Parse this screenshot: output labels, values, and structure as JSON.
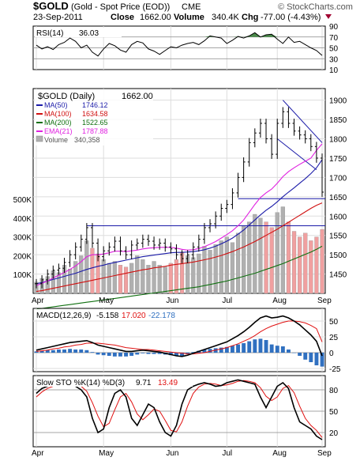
{
  "header": {
    "symbol": "$GOLD",
    "name": "(Gold - Spot Price (EOD))",
    "exchange": "CME",
    "copyright": "© StockCharts.com",
    "date": "23-Sep-2011",
    "close_label": "Close",
    "close_value": "1662.00",
    "volume_label": "Volume",
    "volume_value": "340.4K",
    "chg_label": "Chg",
    "chg_value": "-77.00 (-4.43%)"
  },
  "colors": {
    "price": "#000000",
    "ma50": "#1a1aa8",
    "ma100": "#d01010",
    "ma200": "#107010",
    "ema21": "#e020e0",
    "volume_up": "#b0b0b0",
    "volume_down": "#f0a0a0",
    "rsi_fill": "#4a8a4a",
    "macd_hist": "#3070c0",
    "signal": "#e01010",
    "grid": "#dddddd"
  },
  "chart_data": [
    {
      "type": "line",
      "panel": "RSI",
      "label": "RSI(14)",
      "value": "36.03",
      "y_ticks": [
        "90",
        "70",
        "50",
        "30",
        "10"
      ],
      "ylim": [
        10,
        90
      ],
      "levels": [
        70,
        50,
        30
      ],
      "values": [
        55,
        48,
        52,
        47,
        56,
        60,
        68,
        62,
        50,
        55,
        42,
        35,
        48,
        58,
        54,
        46,
        42,
        56,
        62,
        59,
        48,
        44,
        38,
        45,
        52,
        50,
        55,
        58,
        60,
        56,
        63,
        72,
        70,
        68,
        58,
        64,
        71,
        68,
        72,
        78,
        70,
        74,
        75,
        66,
        58,
        70,
        60,
        62,
        56,
        50,
        45,
        36
      ]
    },
    {
      "type": "line",
      "panel": "Price",
      "label": "$GOLD (Daily)",
      "value": "1662.00",
      "x_ticks": [
        "Apr",
        "May",
        "Jun",
        "Jul",
        "Aug",
        "Sep"
      ],
      "y_ticks": [
        "1900",
        "1850",
        "1800",
        "1750",
        "1700",
        "1650",
        "1600",
        "1550",
        "1500",
        "1450"
      ],
      "ylim": [
        1400,
        1930
      ],
      "close": [
        1425,
        1435,
        1450,
        1460,
        1465,
        1480,
        1500,
        1520,
        1540,
        1570,
        1530,
        1495,
        1510,
        1520,
        1535,
        1510,
        1500,
        1525,
        1530,
        1540,
        1535,
        1525,
        1530,
        1520,
        1515,
        1500,
        1490,
        1500,
        1520,
        1540,
        1570,
        1580,
        1600,
        1620,
        1630,
        1660,
        1700,
        1740,
        1790,
        1815,
        1840,
        1800,
        1760,
        1840,
        1870,
        1840,
        1820,
        1810,
        1800,
        1780,
        1750,
        1662
      ],
      "ma": [
        {
          "name": "MA(50)",
          "value": "1746.12",
          "color": "#1a1aa8",
          "values": [
            1425,
            1428,
            1432,
            1436,
            1440,
            1444,
            1448,
            1452,
            1457,
            1462,
            1466,
            1470,
            1473,
            1477,
            1480,
            1483,
            1486,
            1489,
            1492,
            1495,
            1497,
            1499,
            1501,
            1503,
            1505,
            1506,
            1506,
            1507,
            1508,
            1510,
            1513,
            1517,
            1522,
            1528,
            1535,
            1543,
            1553,
            1564,
            1577,
            1590,
            1603,
            1615,
            1625,
            1637,
            1650,
            1662,
            1673,
            1685,
            1697,
            1710,
            1725,
            1746
          ]
        },
        {
          "name": "MA(100)",
          "value": "1634.58",
          "color": "#d01010",
          "values": [
            1405,
            1407,
            1410,
            1413,
            1416,
            1419,
            1422,
            1425,
            1428,
            1431,
            1434,
            1437,
            1440,
            1443,
            1446,
            1449,
            1452,
            1455,
            1458,
            1461,
            1463,
            1466,
            1468,
            1470,
            1473,
            1475,
            1477,
            1479,
            1481,
            1484,
            1487,
            1490,
            1494,
            1498,
            1503,
            1508,
            1514,
            1520,
            1527,
            1534,
            1542,
            1550,
            1558,
            1566,
            1575,
            1584,
            1593,
            1602,
            1611,
            1620,
            1628,
            1634
          ]
        },
        {
          "name": "MA(200)",
          "value": "1522.65",
          "color": "#107010",
          "values": [
            1360,
            1361,
            1363,
            1365,
            1367,
            1369,
            1371,
            1373,
            1375,
            1377,
            1379,
            1381,
            1383,
            1385,
            1387,
            1389,
            1391,
            1393,
            1395,
            1397,
            1399,
            1401,
            1403,
            1405,
            1407,
            1409,
            1411,
            1413,
            1415,
            1417,
            1420,
            1423,
            1426,
            1429,
            1432,
            1436,
            1440,
            1444,
            1448,
            1452,
            1457,
            1462,
            1467,
            1472,
            1477,
            1483,
            1489,
            1495,
            1501,
            1507,
            1514,
            1522
          ]
        },
        {
          "name": "EMA(21)",
          "value": "1787.88",
          "color": "#e020e0",
          "values": [
            1420,
            1426,
            1432,
            1440,
            1447,
            1454,
            1462,
            1471,
            1482,
            1495,
            1500,
            1500,
            1502,
            1505,
            1509,
            1509,
            1508,
            1510,
            1512,
            1515,
            1517,
            1518,
            1519,
            1519,
            1519,
            1517,
            1514,
            1512,
            1513,
            1516,
            1521,
            1527,
            1534,
            1543,
            1552,
            1562,
            1575,
            1590,
            1610,
            1630,
            1648,
            1660,
            1670,
            1685,
            1702,
            1715,
            1725,
            1734,
            1742,
            1750,
            1770,
            1787
          ]
        }
      ],
      "volume_label": "Volume",
      "volume_value": "340,358",
      "volume_ticks": [
        "500K",
        "400K",
        "300K",
        "200K",
        "100K"
      ],
      "volume_ylim": [
        0,
        500000
      ],
      "volume": [
        60000,
        80000,
        90000,
        120000,
        110000,
        150000,
        130000,
        170000,
        200000,
        280000,
        240000,
        210000,
        180000,
        160000,
        170000,
        150000,
        140000,
        160000,
        200000,
        180000,
        150000,
        170000,
        150000,
        140000,
        160000,
        180000,
        220000,
        200000,
        190000,
        210000,
        250000,
        230000,
        260000,
        280000,
        300000,
        270000,
        320000,
        360000,
        380000,
        420000,
        400000,
        380000,
        350000,
        430000,
        460000,
        380000,
        330000,
        300000,
        320000,
        280000,
        300000,
        340000
      ],
      "down_days": [
        10,
        11,
        15,
        16,
        24,
        25,
        26,
        41,
        42,
        45,
        46,
        47,
        48,
        49,
        50,
        51
      ]
    },
    {
      "type": "line",
      "panel": "MACD",
      "label": "MACD(12,26,9)",
      "macd_value": "-5.158",
      "signal_value": "17.020",
      "hist_value": "-22.178",
      "y_ticks": [
        "50",
        "25",
        "0",
        "-25"
      ],
      "ylim": [
        -30,
        70
      ],
      "macd": [
        4,
        6,
        8,
        10,
        12,
        14,
        16,
        17,
        18,
        19,
        16,
        12,
        10,
        8,
        6,
        4,
        2,
        2,
        3,
        4,
        3,
        2,
        1,
        -1,
        -3,
        -5,
        -6,
        -4,
        -1,
        2,
        5,
        8,
        11,
        14,
        17,
        22,
        27,
        33,
        40,
        48,
        55,
        58,
        55,
        56,
        58,
        55,
        50,
        44,
        36,
        28,
        18,
        -5
      ],
      "signal": [
        2,
        3,
        4,
        6,
        7,
        9,
        10,
        12,
        13,
        15,
        15,
        15,
        14,
        13,
        12,
        10,
        8,
        7,
        6,
        5,
        5,
        4,
        3,
        2,
        1,
        0,
        -1,
        -2,
        -2,
        -1,
        0,
        2,
        4,
        6,
        8,
        11,
        14,
        18,
        22,
        27,
        33,
        38,
        42,
        45,
        48,
        50,
        50,
        49,
        47,
        43,
        38,
        17
      ],
      "histogram": [
        2,
        3,
        4,
        4,
        5,
        5,
        6,
        5,
        5,
        4,
        1,
        -3,
        -4,
        -5,
        -6,
        -6,
        -6,
        -5,
        -3,
        -1,
        -2,
        -2,
        -2,
        -3,
        -4,
        -5,
        -5,
        -2,
        1,
        3,
        5,
        6,
        7,
        8,
        9,
        11,
        13,
        15,
        18,
        21,
        22,
        20,
        13,
        11,
        10,
        5,
        0,
        -5,
        -11,
        -15,
        -20,
        -22
      ]
    },
    {
      "type": "line",
      "panel": "Stochastics",
      "label": "Slow STO %K(14) %D(3)",
      "k_value": "9.71",
      "d_value": "13.49",
      "y_ticks": [
        "80",
        "50",
        "20"
      ],
      "ylim": [
        0,
        100
      ],
      "levels": [
        80,
        50,
        20
      ],
      "k": [
        75,
        82,
        85,
        88,
        86,
        88,
        90,
        85,
        80,
        70,
        40,
        20,
        25,
        55,
        75,
        80,
        70,
        40,
        30,
        45,
        60,
        55,
        35,
        20,
        15,
        30,
        60,
        80,
        85,
        88,
        90,
        88,
        85,
        86,
        90,
        92,
        94,
        92,
        90,
        88,
        70,
        55,
        70,
        85,
        90,
        82,
        55,
        35,
        30,
        25,
        15,
        10
      ],
      "d": [
        70,
        77,
        82,
        85,
        86,
        87,
        88,
        87,
        85,
        78,
        62,
        43,
        28,
        33,
        52,
        70,
        75,
        63,
        46,
        38,
        45,
        53,
        50,
        37,
        23,
        21,
        35,
        57,
        75,
        84,
        88,
        89,
        88,
        86,
        87,
        89,
        92,
        93,
        92,
        90,
        83,
        71,
        65,
        70,
        82,
        86,
        76,
        57,
        40,
        30,
        23,
        13
      ]
    }
  ]
}
